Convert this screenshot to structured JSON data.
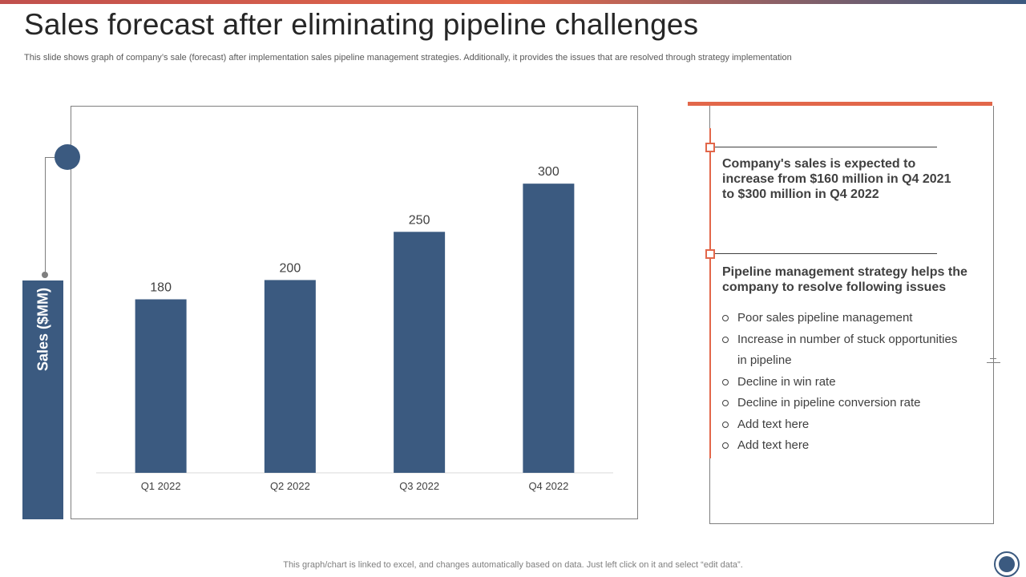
{
  "header": {
    "title": "Sales forecast after eliminating pipeline challenges",
    "subtitle": "This slide shows graph of company’s sale (forecast) after implementation sales pipeline management strategies. Additionally, it provides the issues that are resolved through strategy implementation"
  },
  "chart_data": {
    "type": "bar",
    "categories": [
      "Q1 2022",
      "Q2 2022",
      "Q3 2022",
      "Q4 2022"
    ],
    "values": [
      180,
      200,
      250,
      300
    ],
    "title": "",
    "xlabel": "",
    "ylabel": "Sales ($MM)",
    "ylim": [
      0,
      360
    ],
    "grid": false,
    "bar_color": "#3b5a80"
  },
  "panel": {
    "note1": "Company's sales is expected to increase from $160 million in Q4 2021 to $300 million  in Q4 2022",
    "note2": "Pipeline management strategy helps the company to resolve following issues",
    "issues": [
      "Poor sales pipeline management",
      "Increase in number of stuck opportunities in pipeline",
      "Decline in win rate",
      "Decline in pipeline conversion rate",
      "Add text here",
      "Add text here"
    ]
  },
  "footer": {
    "note": "This graph/chart is linked to excel,  and changes automatically based on data. Just left click on it and select “edit data”."
  },
  "colors": {
    "accent": "#e2674a",
    "primary": "#3b5a80"
  }
}
